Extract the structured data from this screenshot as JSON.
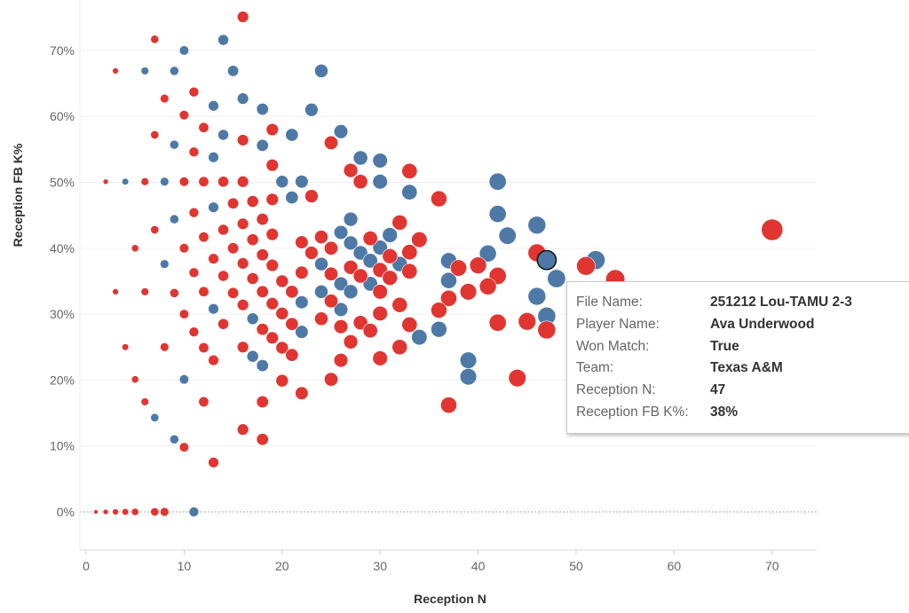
{
  "chart_data": {
    "type": "scatter",
    "title": "",
    "xlabel": "Reception N",
    "ylabel": "Reception FB K%",
    "xlim": [
      0,
      75
    ],
    "ylim": [
      -5,
      78
    ],
    "xticks": [
      0,
      10,
      20,
      30,
      40,
      50,
      60,
      70
    ],
    "yticks": [
      0,
      10,
      20,
      30,
      40,
      50,
      60,
      70
    ],
    "ytick_suffix": "%",
    "grid": "horizontal",
    "size_encoding": "Reception N",
    "series": [
      {
        "name": "blue",
        "color": "#4e79a7",
        "points": [
          [
            10,
            70
          ],
          [
            14,
            71.6
          ],
          [
            6,
            66.9
          ],
          [
            9,
            66.9
          ],
          [
            15,
            66.9
          ],
          [
            24,
            66.9
          ],
          [
            16,
            62.7
          ],
          [
            13,
            61.6
          ],
          [
            18,
            61.1
          ],
          [
            23,
            61.0
          ],
          [
            26,
            57.7
          ],
          [
            21,
            57.2
          ],
          [
            14,
            57.2
          ],
          [
            18,
            55.6
          ],
          [
            9,
            55.7
          ],
          [
            13,
            53.8
          ],
          [
            28,
            53.7
          ],
          [
            30,
            53.3
          ],
          [
            4,
            50.1
          ],
          [
            8,
            50.1
          ],
          [
            20,
            50.1
          ],
          [
            22,
            50.1
          ],
          [
            30,
            50.1
          ],
          [
            42,
            50.1
          ],
          [
            21,
            47.7
          ],
          [
            33,
            48.5
          ],
          [
            13,
            46.2
          ],
          [
            9,
            44.4
          ],
          [
            27,
            44.4
          ],
          [
            42,
            45.2
          ],
          [
            46,
            43.5
          ],
          [
            43,
            41.9
          ],
          [
            26,
            42.4
          ],
          [
            27,
            40.8
          ],
          [
            31,
            42.0
          ],
          [
            30,
            40.1
          ],
          [
            28,
            39.3
          ],
          [
            8,
            37.6
          ],
          [
            24,
            37.6
          ],
          [
            29,
            38.1
          ],
          [
            32,
            37.6
          ],
          [
            41,
            39.2
          ],
          [
            37,
            38.1
          ],
          [
            52,
            38.2
          ],
          [
            48,
            35.4
          ],
          [
            26,
            34.6
          ],
          [
            27,
            33.4
          ],
          [
            29,
            34.6
          ],
          [
            37,
            35.1
          ],
          [
            46,
            32.7
          ],
          [
            26,
            30.7
          ],
          [
            24,
            33.4
          ],
          [
            47,
            29.7
          ],
          [
            34,
            26.5
          ],
          [
            36,
            27.7
          ],
          [
            39,
            23.0
          ],
          [
            39,
            20.5
          ],
          [
            22,
            31.8
          ],
          [
            13,
            30.8
          ],
          [
            17,
            29.3
          ],
          [
            22,
            27.3
          ],
          [
            17,
            23.6
          ],
          [
            18,
            22.2
          ],
          [
            10,
            20.1
          ],
          [
            7,
            14.3
          ],
          [
            9,
            11.0
          ],
          [
            11,
            0
          ]
        ]
      },
      {
        "name": "red",
        "color": "#e03531",
        "points": [
          [
            16,
            75.1
          ],
          [
            7,
            71.7
          ],
          [
            3,
            66.9
          ],
          [
            11,
            63.7
          ],
          [
            8,
            62.7
          ],
          [
            10,
            60.2
          ],
          [
            12,
            58.3
          ],
          [
            19,
            58.0
          ],
          [
            25,
            56.0
          ],
          [
            7,
            57.2
          ],
          [
            16,
            56.4
          ],
          [
            11,
            54.6
          ],
          [
            19,
            52.6
          ],
          [
            27,
            51.8
          ],
          [
            33,
            51.7
          ],
          [
            2,
            50.1
          ],
          [
            6,
            50.1
          ],
          [
            10,
            50.1
          ],
          [
            12,
            50.1
          ],
          [
            14,
            50.1
          ],
          [
            16,
            50.1
          ],
          [
            28,
            50.1
          ],
          [
            36,
            47.5
          ],
          [
            23,
            47.9
          ],
          [
            19,
            47.4
          ],
          [
            17,
            47.1
          ],
          [
            15,
            46.8
          ],
          [
            11,
            45.4
          ],
          [
            18,
            44.4
          ],
          [
            16,
            43.7
          ],
          [
            7,
            42.8
          ],
          [
            14,
            42.8
          ],
          [
            32,
            43.9
          ],
          [
            12,
            41.7
          ],
          [
            17,
            41.3
          ],
          [
            19,
            42.1
          ],
          [
            22,
            40.9
          ],
          [
            23,
            39.3
          ],
          [
            5,
            40.0
          ],
          [
            10,
            40.0
          ],
          [
            15,
            40.0
          ],
          [
            18,
            39.0
          ],
          [
            13,
            38.4
          ],
          [
            16,
            37.7
          ],
          [
            19,
            37.4
          ],
          [
            11,
            36.3
          ],
          [
            14,
            35.8
          ],
          [
            17,
            35.4
          ],
          [
            20,
            35.0
          ],
          [
            22,
            36.3
          ],
          [
            3,
            33.4
          ],
          [
            6,
            33.4
          ],
          [
            9,
            33.2
          ],
          [
            12,
            33.4
          ],
          [
            15,
            33.2
          ],
          [
            18,
            33.4
          ],
          [
            21,
            33.4
          ],
          [
            10,
            30.0
          ],
          [
            16,
            31.4
          ],
          [
            19,
            31.6
          ],
          [
            20,
            30.1
          ],
          [
            21,
            28.5
          ],
          [
            14,
            28.5
          ],
          [
            11,
            27.3
          ],
          [
            18,
            27.7
          ],
          [
            19,
            26.4
          ],
          [
            20,
            24.9
          ],
          [
            21,
            23.8
          ],
          [
            4,
            25.0
          ],
          [
            8,
            25.0
          ],
          [
            12,
            24.9
          ],
          [
            16,
            25.0
          ],
          [
            13,
            23.0
          ],
          [
            5,
            20.1
          ],
          [
            20,
            19.9
          ],
          [
            22,
            18.0
          ],
          [
            6,
            16.7
          ],
          [
            12,
            16.7
          ],
          [
            18,
            16.7
          ],
          [
            16,
            12.5
          ],
          [
            18,
            11.0
          ],
          [
            10,
            9.8
          ],
          [
            13,
            7.5
          ],
          [
            1,
            0
          ],
          [
            2,
            0
          ],
          [
            3,
            0
          ],
          [
            4,
            0
          ],
          [
            5,
            0
          ],
          [
            7,
            0
          ],
          [
            8,
            0
          ],
          [
            24,
            41.7
          ],
          [
            29,
            41.5
          ],
          [
            34,
            41.3
          ],
          [
            25,
            40.0
          ],
          [
            31,
            38.8
          ],
          [
            33,
            39.4
          ],
          [
            46,
            39.3
          ],
          [
            51,
            37.3
          ],
          [
            25,
            36.1
          ],
          [
            27,
            37.1
          ],
          [
            28,
            35.8
          ],
          [
            30,
            36.7
          ],
          [
            31,
            35.5
          ],
          [
            33,
            36.5
          ],
          [
            38,
            37.0
          ],
          [
            40,
            37.4
          ],
          [
            42,
            35.8
          ],
          [
            30,
            33.4
          ],
          [
            41,
            34.2
          ],
          [
            39,
            33.4
          ],
          [
            37,
            32.4
          ],
          [
            25,
            32.0
          ],
          [
            30,
            30.1
          ],
          [
            32,
            31.4
          ],
          [
            36,
            30.6
          ],
          [
            24,
            29.3
          ],
          [
            28,
            28.7
          ],
          [
            29,
            27.5
          ],
          [
            26,
            28.1
          ],
          [
            27,
            25.8
          ],
          [
            33,
            28.4
          ],
          [
            42,
            28.7
          ],
          [
            45,
            28.9
          ],
          [
            47,
            27.6
          ],
          [
            26,
            23.0
          ],
          [
            30,
            23.3
          ],
          [
            32,
            25.0
          ],
          [
            44,
            20.3
          ],
          [
            25,
            20.1
          ],
          [
            37,
            16.2
          ],
          [
            54,
            35.3
          ],
          [
            70,
            42.8
          ]
        ]
      }
    ],
    "highlighted_point": {
      "x": 47,
      "y": 38.2,
      "series": "blue"
    }
  },
  "tooltip": {
    "rows": [
      {
        "label": "File Name:",
        "value": "251212 Lou-TAMU 2-3"
      },
      {
        "label": "Player Name:",
        "value": "Ava Underwood"
      },
      {
        "label": "Won Match:",
        "value": "True"
      },
      {
        "label": "Team:",
        "value": "Texas A&M"
      },
      {
        "label": "Reception N:",
        "value": "47"
      },
      {
        "label": "Reception FB K%:",
        "value": "38%"
      }
    ]
  }
}
